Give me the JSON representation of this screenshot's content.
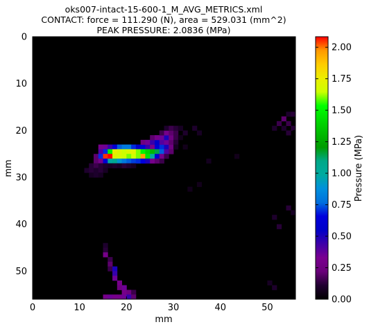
{
  "chart_data": {
    "type": "heatmap",
    "title_lines": [
      "oks007-intact-15-600-1_M_AVG_METRICS.xml",
      "CONTACT: force = 111.290 (N), area = 529.031 (mm^2)",
      "PEAK PRESSURE: 2.0836 (MPa)"
    ],
    "xlabel": "mm",
    "ylabel": "mm",
    "xlim": [
      0,
      56
    ],
    "ylim": [
      0,
      56
    ],
    "y_inverted": true,
    "x_ticks": [
      "0",
      "10",
      "20",
      "30",
      "40",
      "50"
    ],
    "y_ticks": [
      "0",
      "10",
      "20",
      "30",
      "40",
      "50"
    ],
    "colorbar": {
      "label": "Pressure (MPa)",
      "range": [
        0,
        2.0836
      ],
      "ticks": [
        "0.00",
        "0.25",
        "0.50",
        "0.75",
        "1.00",
        "1.25",
        "1.50",
        "1.75",
        "2.00"
      ],
      "colormap": "nipy_spectral"
    },
    "cells": [
      [
        15,
        24,
        0.3
      ],
      [
        16,
        24,
        0.35
      ],
      [
        17,
        24,
        0.45
      ],
      [
        18,
        24,
        0.6
      ],
      [
        19,
        24,
        0.75
      ],
      [
        20,
        24,
        0.8
      ],
      [
        21,
        24,
        0.8
      ],
      [
        22,
        24,
        0.7
      ],
      [
        23,
        24,
        0.55
      ],
      [
        24,
        24,
        0.6
      ],
      [
        25,
        24,
        0.45
      ],
      [
        26,
        24,
        0.3
      ],
      [
        27,
        24,
        0.6
      ],
      [
        28,
        24,
        0.7
      ],
      [
        29,
        24,
        0.5
      ],
      [
        30,
        24,
        0.25
      ],
      [
        15,
        25,
        0.4
      ],
      [
        16,
        25,
        0.7
      ],
      [
        17,
        25,
        1.5
      ],
      [
        18,
        25,
        1.75
      ],
      [
        19,
        25,
        1.7
      ],
      [
        20,
        25,
        1.65
      ],
      [
        21,
        25,
        1.7
      ],
      [
        22,
        25,
        1.72
      ],
      [
        23,
        25,
        1.6
      ],
      [
        24,
        25,
        1.5
      ],
      [
        25,
        25,
        1.4
      ],
      [
        26,
        25,
        1.3
      ],
      [
        27,
        25,
        1.15
      ],
      [
        28,
        25,
        0.75
      ],
      [
        29,
        25,
        0.4
      ],
      [
        30,
        25,
        0.2
      ],
      [
        14,
        26,
        0.2
      ],
      [
        15,
        26,
        0.7
      ],
      [
        16,
        26,
        2.05
      ],
      [
        17,
        26,
        2.0836
      ],
      [
        18,
        26,
        1.7
      ],
      [
        19,
        26,
        1.68
      ],
      [
        20,
        26,
        1.65
      ],
      [
        21,
        26,
        1.6
      ],
      [
        22,
        26,
        1.65
      ],
      [
        23,
        26,
        1.6
      ],
      [
        24,
        26,
        1.95
      ],
      [
        25,
        26,
        1.45
      ],
      [
        26,
        26,
        1.0
      ],
      [
        27,
        26,
        0.6
      ],
      [
        28,
        26,
        0.3
      ],
      [
        29,
        26,
        0.15
      ],
      [
        14,
        27,
        0.2
      ],
      [
        15,
        27,
        0.3
      ],
      [
        16,
        27,
        0.6
      ],
      [
        17,
        27,
        1.0
      ],
      [
        18,
        27,
        1.05
      ],
      [
        19,
        27,
        0.9
      ],
      [
        20,
        27,
        0.8
      ],
      [
        21,
        27,
        0.75
      ],
      [
        22,
        27,
        0.72
      ],
      [
        23,
        27,
        0.7
      ],
      [
        24,
        27,
        0.65
      ],
      [
        25,
        27,
        0.5
      ],
      [
        26,
        27,
        0.3
      ],
      [
        27,
        27,
        0.2
      ],
      [
        28,
        27,
        0.15
      ],
      [
        24,
        23,
        0.25
      ],
      [
        25,
        23,
        0.35
      ],
      [
        26,
        23,
        0.45
      ],
      [
        27,
        23,
        0.55
      ],
      [
        28,
        23,
        0.4
      ],
      [
        29,
        23,
        0.35
      ],
      [
        30,
        23,
        0.2
      ],
      [
        26,
        22,
        0.2
      ],
      [
        27,
        22,
        0.3
      ],
      [
        28,
        22,
        0.35
      ],
      [
        29,
        22,
        0.5
      ],
      [
        30,
        22,
        0.25
      ],
      [
        31,
        22,
        0.15
      ],
      [
        28,
        21,
        0.15
      ],
      [
        29,
        21,
        0.3
      ],
      [
        30,
        21,
        0.2
      ],
      [
        31,
        21,
        0.15
      ],
      [
        29,
        20,
        0.1
      ],
      [
        30,
        20,
        0.15
      ],
      [
        31,
        20,
        0.12
      ],
      [
        32,
        20,
        0.1
      ],
      [
        16,
        56,
        0.3
      ],
      [
        17,
        56,
        0.35
      ],
      [
        18,
        56,
        0.3
      ],
      [
        19,
        56,
        0.3
      ],
      [
        20,
        56,
        0.35
      ],
      [
        21,
        56,
        0.45
      ],
      [
        13,
        28,
        0.12
      ],
      [
        14,
        28,
        0.15
      ],
      [
        15,
        28,
        0.12
      ],
      [
        16,
        28,
        0.1
      ],
      [
        17,
        28,
        0.08
      ],
      [
        18,
        28,
        0.1
      ],
      [
        19,
        28,
        0.08
      ],
      [
        12,
        29,
        0.1
      ],
      [
        13,
        29,
        0.12
      ],
      [
        14,
        29,
        0.1
      ],
      [
        15,
        29,
        0.12
      ],
      [
        16,
        29,
        0.08
      ],
      [
        13,
        30,
        0.08
      ],
      [
        14,
        30,
        0.1
      ],
      [
        15,
        30,
        0.08
      ],
      [
        20,
        28,
        0.12
      ],
      [
        21,
        28,
        0.1
      ],
      [
        22,
        28,
        0.08
      ],
      [
        16,
        45,
        0.1
      ],
      [
        16,
        46,
        0.12
      ],
      [
        16,
        47,
        0.3
      ],
      [
        17,
        48,
        0.15
      ],
      [
        17,
        49,
        0.2
      ],
      [
        17,
        50,
        0.15
      ],
      [
        18,
        50,
        0.5
      ],
      [
        18,
        51,
        0.45
      ],
      [
        18,
        52,
        0.35
      ],
      [
        19,
        53,
        0.3
      ],
      [
        19,
        54,
        0.25
      ],
      [
        20,
        54,
        0.35
      ],
      [
        20,
        55,
        0.3
      ],
      [
        21,
        55,
        0.25
      ],
      [
        21,
        56,
        0.45
      ],
      [
        22,
        55,
        0.15
      ],
      [
        22,
        56,
        0.2
      ],
      [
        55,
        17,
        0.1
      ],
      [
        56,
        17,
        0.12
      ],
      [
        53,
        19,
        0.15
      ],
      [
        54,
        18,
        0.2
      ],
      [
        55,
        19,
        0.15
      ],
      [
        56,
        20,
        0.12
      ],
      [
        52,
        20,
        0.1
      ],
      [
        54,
        20,
        0.1
      ],
      [
        55,
        21,
        0.12
      ],
      [
        35,
        20,
        0.1
      ],
      [
        36,
        21,
        0.08
      ],
      [
        52,
        39,
        0.1
      ],
      [
        53,
        41,
        0.12
      ],
      [
        55,
        37,
        0.12
      ],
      [
        56,
        38,
        0.08
      ],
      [
        52,
        54,
        0.1
      ],
      [
        51,
        53,
        0.08
      ],
      [
        32,
        20,
        0.08
      ],
      [
        33,
        21,
        0.1
      ],
      [
        31,
        23,
        0.12
      ],
      [
        31,
        24,
        0.08
      ],
      [
        32,
        22,
        0.06
      ],
      [
        33,
        24,
        0.06
      ],
      [
        44,
        26,
        0.06
      ],
      [
        38,
        27,
        0.07
      ],
      [
        34,
        33,
        0.06
      ],
      [
        36,
        32,
        0.06
      ]
    ]
  }
}
